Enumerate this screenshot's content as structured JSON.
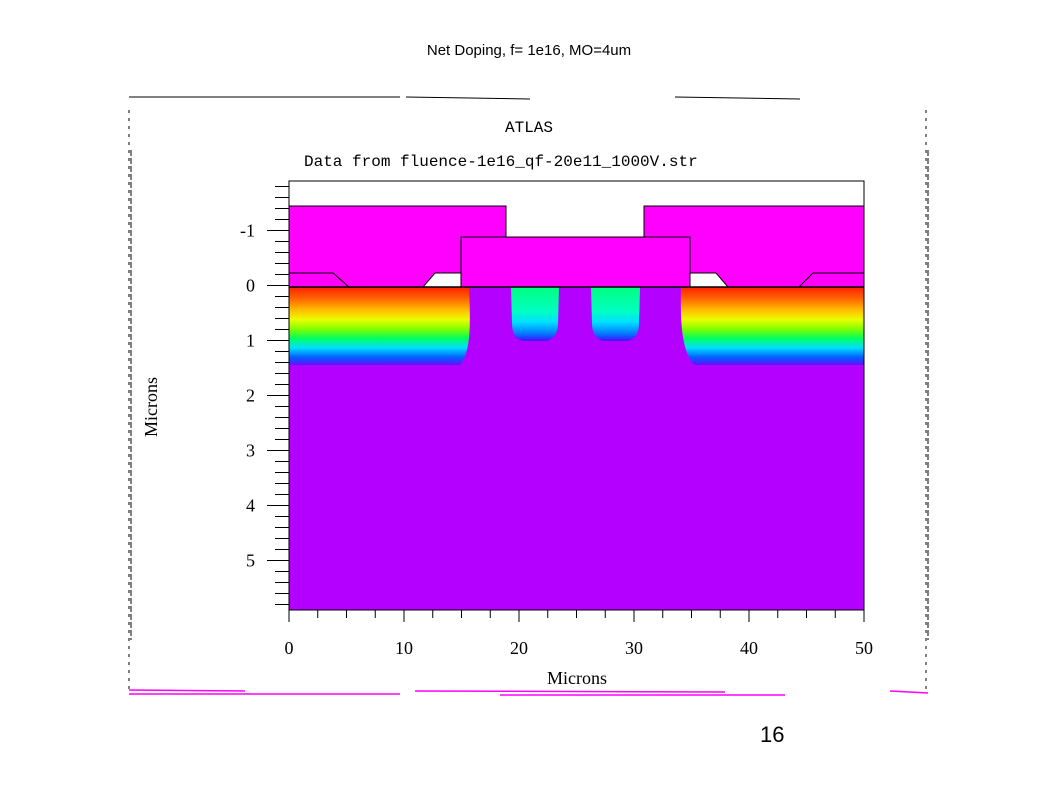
{
  "slide": {
    "title": "Net Doping, f= 1e16, MO=4um",
    "page_number": "16"
  },
  "plot": {
    "program": "ATLAS",
    "subtitle": "Data from fluence-1e16_qf-20e11_1000V.str",
    "x_axis": {
      "label": "Microns",
      "range": [
        0,
        50
      ],
      "ticks": [
        "0",
        "10",
        "20",
        "30",
        "40",
        "50"
      ]
    },
    "y_axis": {
      "label": "Microns",
      "range": [
        -1.9,
        5.9
      ],
      "ticks": [
        "-1",
        "0",
        "1",
        "2",
        "3",
        "4",
        "5"
      ],
      "inverted": true
    },
    "colors": {
      "oxide": "#ff00ff",
      "bulk": "#b400ff",
      "implant_top": "#ff2000",
      "implant_bottom": "#0010ff"
    }
  }
}
